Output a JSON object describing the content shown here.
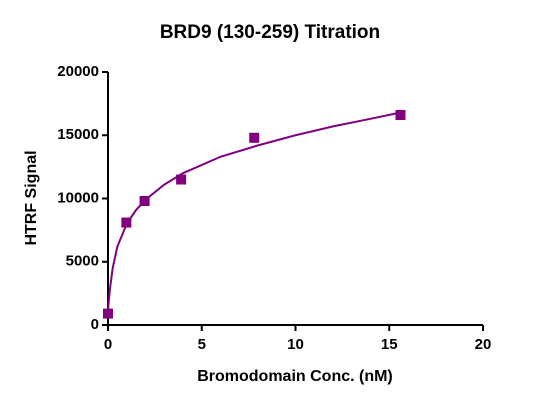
{
  "chart_data": {
    "type": "scatter",
    "title": "BRD9 (130-259) Titration",
    "x_label": "Bromodomain Conc. (nM)",
    "y_label": "HTRF Signal",
    "xlim": [
      0,
      20
    ],
    "xticks": [
      0,
      5,
      10,
      15,
      20
    ],
    "ylim": [
      0,
      20000
    ],
    "yticks": [
      0,
      5000,
      10000,
      15000,
      20000
    ],
    "grid": false,
    "series": [
      {
        "type": "scatter",
        "marker": "square",
        "color": "#800080",
        "x": [
          0,
          0.98,
          1.95,
          3.9,
          7.8,
          15.6
        ],
        "values": [
          900,
          8100,
          9800,
          11500,
          14800,
          16600
        ]
      },
      {
        "type": "line",
        "color": "#800080",
        "x": [
          0,
          0.1,
          0.25,
          0.5,
          1,
          1.5,
          2,
          3,
          4,
          6,
          8,
          10,
          12,
          14,
          15.6
        ],
        "values": [
          1200,
          2800,
          4500,
          6200,
          8000,
          9100,
          9900,
          11100,
          12000,
          13300,
          14200,
          15000,
          15700,
          16300,
          16800
        ]
      }
    ]
  }
}
